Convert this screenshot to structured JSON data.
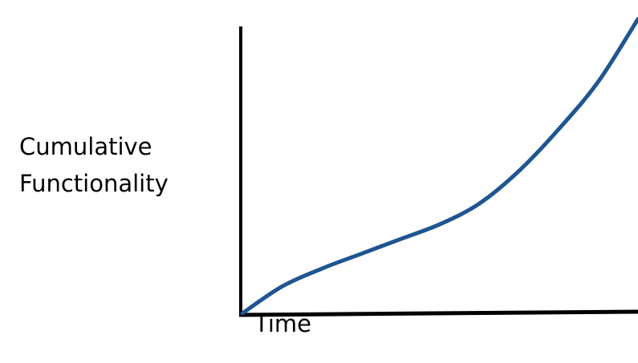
{
  "chart_data": {
    "type": "line",
    "title": "",
    "xlabel": "Time",
    "ylabel_lines": [
      "Cumulative",
      "Functionality"
    ],
    "x": [
      0,
      0.1,
      0.2,
      0.3,
      0.4,
      0.5,
      0.6,
      0.7,
      0.8,
      0.9,
      1.0
    ],
    "series": [
      {
        "values": [
          0.0,
          0.09,
          0.15,
          0.2,
          0.25,
          0.3,
          0.37,
          0.48,
          0.62,
          0.78,
          0.99
        ]
      }
    ],
    "xlim": [
      0,
      1
    ],
    "ylim": [
      0,
      1
    ],
    "ticks": false,
    "grid": false,
    "colors": {
      "line": "#1f5591",
      "axis": "#000000"
    }
  }
}
